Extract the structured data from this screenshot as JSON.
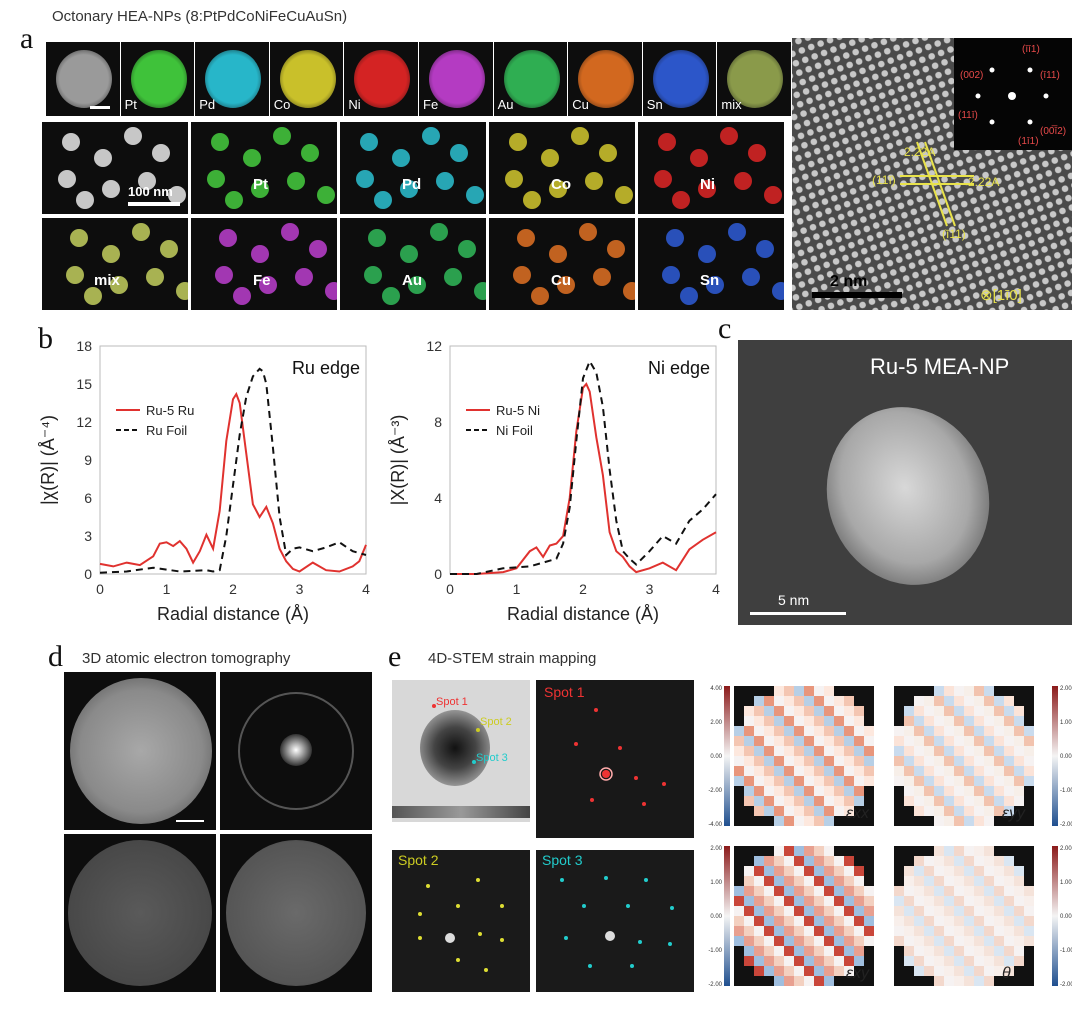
{
  "panel_a": {
    "letter": "a",
    "title": "Octonary HEA-NPs (8:PtPdCoNiFeCuAuSn)",
    "top_row": [
      {
        "label": "",
        "color": "#9a9a9a"
      },
      {
        "label": "Pt",
        "color": "#3fc23a"
      },
      {
        "label": "Pd",
        "color": "#27b6c9"
      },
      {
        "label": "Co",
        "color": "#c9c02a"
      },
      {
        "label": "Ni",
        "color": "#d42323"
      },
      {
        "label": "Fe",
        "color": "#b43bc2"
      },
      {
        "label": "Au",
        "color": "#2fae52"
      },
      {
        "label": "Cu",
        "color": "#d2681f"
      },
      {
        "label": "Sn",
        "color": "#2c56c9"
      },
      {
        "label": "mix",
        "color": "#8a9a4a"
      }
    ],
    "grid_row1": [
      {
        "label": "",
        "color": "#dcdcdc"
      },
      {
        "label": "Pt",
        "color": "#43c23c"
      },
      {
        "label": "Pd",
        "color": "#2ab7c6"
      },
      {
        "label": "Co",
        "color": "#c8be2c"
      },
      {
        "label": "Ni",
        "color": "#d42525"
      }
    ],
    "grid_row2": [
      {
        "label": "mix",
        "color": "#b9c45a"
      },
      {
        "label": "Fe",
        "color": "#b33cc4"
      },
      {
        "label": "Au",
        "color": "#2fb055"
      },
      {
        "label": "Cu",
        "color": "#d56b22"
      },
      {
        "label": "Sn",
        "color": "#2c58cc"
      }
    ],
    "scale_100nm": "100 nm",
    "hrtem": {
      "d1": "2.22A",
      "d2": "2.22A",
      "plane1": "(11ī)",
      "plane2": "(ī11)",
      "zone": "⊗[1ī0]",
      "scale": "2 nm",
      "fft_labels": [
        "(īī1)",
        "(002)",
        "(ī11)",
        "(11ī)",
        "(1ī1)",
        "(00̅ī2)"
      ]
    }
  },
  "panel_b": {
    "letter": "b",
    "chart_data": [
      {
        "type": "line",
        "title": "Ru edge",
        "xlabel": "Radial distance (Å)",
        "ylabel": "|χ(R)| (Å⁻⁴)",
        "xlim": [
          0,
          4
        ],
        "ylim": [
          0,
          18
        ],
        "xticks": [
          "0",
          "1",
          "2",
          "3",
          "4"
        ],
        "yticks": [
          "0",
          "3",
          "6",
          "9",
          "12",
          "15",
          "18"
        ],
        "legend_position": "upper-left",
        "series": [
          {
            "name": "Ru-5 Ru",
            "color": "#e0322f",
            "dash": "solid",
            "x": [
              0,
              0.2,
              0.4,
              0.6,
              0.8,
              0.9,
              1.0,
              1.1,
              1.2,
              1.3,
              1.4,
              1.5,
              1.6,
              1.7,
              1.8,
              1.9,
              2.0,
              2.05,
              2.1,
              2.2,
              2.3,
              2.4,
              2.5,
              2.6,
              2.7,
              2.8,
              2.9,
              3.0,
              3.2,
              3.4,
              3.6,
              3.8,
              3.9,
              4.0
            ],
            "y": [
              0.8,
              0.6,
              0.9,
              0.7,
              1.4,
              2.4,
              2.5,
              2.2,
              2.6,
              2.0,
              0.9,
              1.8,
              3.1,
              2.0,
              5.0,
              10.5,
              13.8,
              14.2,
              13.5,
              9.5,
              5.5,
              4.5,
              5.3,
              4.0,
              2.0,
              1.0,
              0.4,
              0.2,
              0.9,
              0.3,
              0.2,
              0.6,
              1.0,
              2.3
            ]
          },
          {
            "name": "Ru Foil",
            "color": "#111111",
            "dash": "dashed",
            "x": [
              0,
              0.4,
              0.8,
              1.2,
              1.6,
              1.7,
              1.8,
              1.9,
              2.0,
              2.1,
              2.2,
              2.3,
              2.4,
              2.45,
              2.5,
              2.6,
              2.7,
              2.8,
              2.9,
              3.0,
              3.2,
              3.4,
              3.6,
              3.8,
              4.0
            ],
            "y": [
              0.1,
              0.2,
              0.5,
              0.2,
              0.3,
              0.2,
              0.3,
              3.0,
              7.0,
              11.0,
              14.0,
              15.6,
              16.2,
              16.0,
              15.0,
              10.0,
              4.5,
              1.5,
              2.0,
              2.1,
              1.8,
              2.1,
              2.5,
              1.8,
              1.5
            ]
          }
        ]
      },
      {
        "type": "line",
        "title": "Ni edge",
        "xlabel": "Radial distance (Å)",
        "ylabel": "|X(R)| (Å⁻³)",
        "xlim": [
          0,
          4
        ],
        "ylim": [
          0,
          12
        ],
        "xticks": [
          "0",
          "1",
          "2",
          "3",
          "4"
        ],
        "yticks": [
          "0",
          "4",
          "8",
          "12"
        ],
        "legend_position": "upper-left",
        "series": [
          {
            "name": "Ru-5 Ni",
            "color": "#e0322f",
            "dash": "solid",
            "x": [
              0,
              0.4,
              0.8,
              1.0,
              1.2,
              1.3,
              1.4,
              1.5,
              1.6,
              1.7,
              1.8,
              1.9,
              2.0,
              2.05,
              2.1,
              2.2,
              2.3,
              2.4,
              2.5,
              2.6,
              2.7,
              2.8,
              3.0,
              3.2,
              3.4,
              3.6,
              3.8,
              4.0
            ],
            "y": [
              0,
              0,
              0.1,
              0.3,
              1.2,
              1.4,
              0.9,
              1.5,
              1.6,
              2.0,
              4.0,
              7.5,
              9.8,
              10.0,
              9.6,
              7.2,
              5.2,
              2.2,
              1.2,
              0.9,
              0.4,
              0.1,
              0.3,
              0.6,
              0.2,
              1.3,
              1.8,
              2.2
            ]
          },
          {
            "name": "Ni Foil",
            "color": "#111111",
            "dash": "dashed",
            "x": [
              0,
              0.4,
              0.8,
              1.2,
              1.4,
              1.6,
              1.7,
              1.8,
              1.9,
              2.0,
              2.1,
              2.2,
              2.3,
              2.4,
              2.5,
              2.6,
              2.7,
              2.8,
              3.0,
              3.2,
              3.4,
              3.6,
              3.8,
              4.0
            ],
            "y": [
              0,
              0,
              0.3,
              0.4,
              0.6,
              0.8,
              1.6,
              3.5,
              7.0,
              10.3,
              11.2,
              10.6,
              8.8,
              5.5,
              2.8,
              1.2,
              0.8,
              0.5,
              1.2,
              2.0,
              1.6,
              2.8,
              3.4,
              4.2
            ]
          }
        ]
      }
    ]
  },
  "panel_c": {
    "letter": "c",
    "title": "Ru-5 MEA-NP",
    "scale": "5 nm"
  },
  "panel_d": {
    "letter": "d",
    "title": "3D atomic electron tomography"
  },
  "panel_e": {
    "letter": "e",
    "title": "4D-STEM strain mapping",
    "spot1": "Spot 1",
    "spot2": "Spot 2",
    "spot3": "Spot 3",
    "map_labels": [
      "εxx",
      "εyy",
      "εxy",
      "θ"
    ],
    "cbar_top": [
      "4.00",
      "2.00",
      "0.00",
      "-2.00",
      "-4.00"
    ],
    "cbar_top_right": [
      "2.00",
      "1.00",
      "0.00",
      "-1.00",
      "-2.00"
    ],
    "cbar_bot": [
      "2.00",
      "1.00",
      "0.00",
      "-1.00",
      "-2.00"
    ],
    "cbar_bot_right": [
      "2.00",
      "1.00",
      "0.00",
      "-1.00",
      "-2.00"
    ]
  }
}
